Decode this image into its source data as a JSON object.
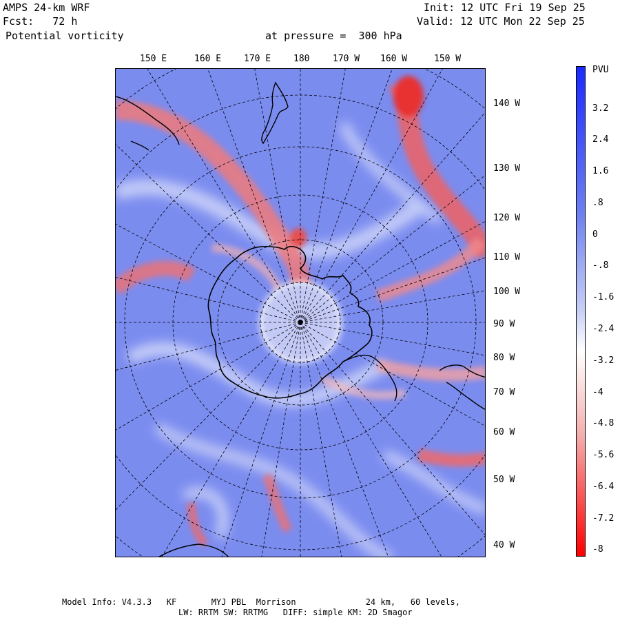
{
  "header": {
    "model": "AMPS 24-km WRF",
    "forecast": "Fcst:   72 h",
    "field": "Potential vorticity",
    "level": "at pressure =  300 hPa",
    "init": "Init: 12 UTC Fri 19 Sep 25",
    "valid": "Valid: 12 UTC Mon 22 Sep 25"
  },
  "lon_labels": [
    "150 E",
    "160 E",
    "170 E",
    "180",
    "170 W",
    "160 W",
    "150 W"
  ],
  "lat_labels": [
    "140 W",
    "130 W",
    "120 W",
    "110 W",
    "100 W",
    "90 W",
    "80 W",
    "70 W",
    "60 W",
    "50 W",
    "40 W"
  ],
  "colorbar": {
    "unit": "PVU",
    "ticks": [
      "3.2",
      "2.4",
      "1.6",
      ".8",
      "0",
      "-.8",
      "-1.6",
      "-2.4",
      "-3.2",
      "-4",
      "-4.8",
      "-5.6",
      "-6.4",
      "-7.2",
      "-8"
    ]
  },
  "footer": {
    "line1": "Model Info: V4.3.3   KF       MYJ PBL  Morrison              24 km,   60 levels,",
    "line2": "LW: RRTM SW: RRTMG   DIFF: simple KM: 2D Smagor"
  }
}
